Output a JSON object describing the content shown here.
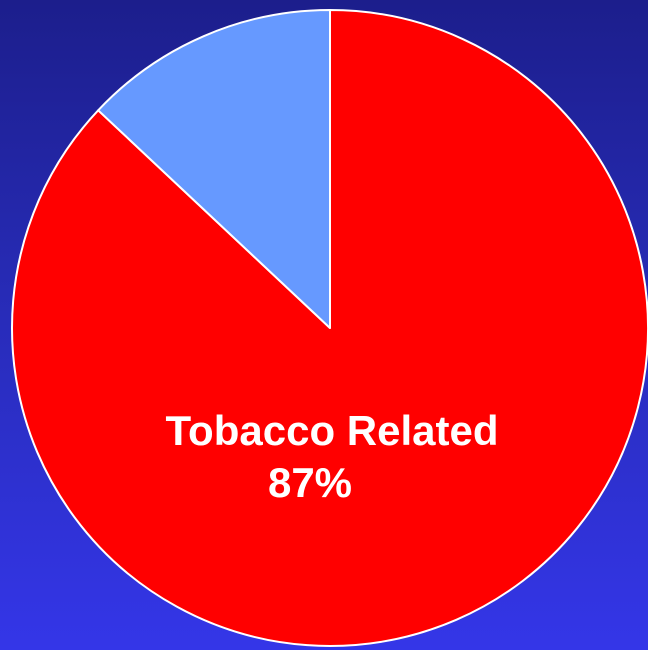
{
  "chart_data": {
    "type": "pie",
    "title": "",
    "slices": [
      {
        "label": "Tobacco Related",
        "value": 87,
        "value_label": "87%",
        "color": "#ff0000"
      },
      {
        "label": "",
        "value": 13,
        "value_label": "",
        "color": "#6699ff"
      }
    ],
    "start": "12 o'clock",
    "direction": "clockwise",
    "legend": "none",
    "edge_color": "#ffffff"
  },
  "labels": {
    "main_label": "Tobacco Related",
    "main_value": "87%"
  }
}
